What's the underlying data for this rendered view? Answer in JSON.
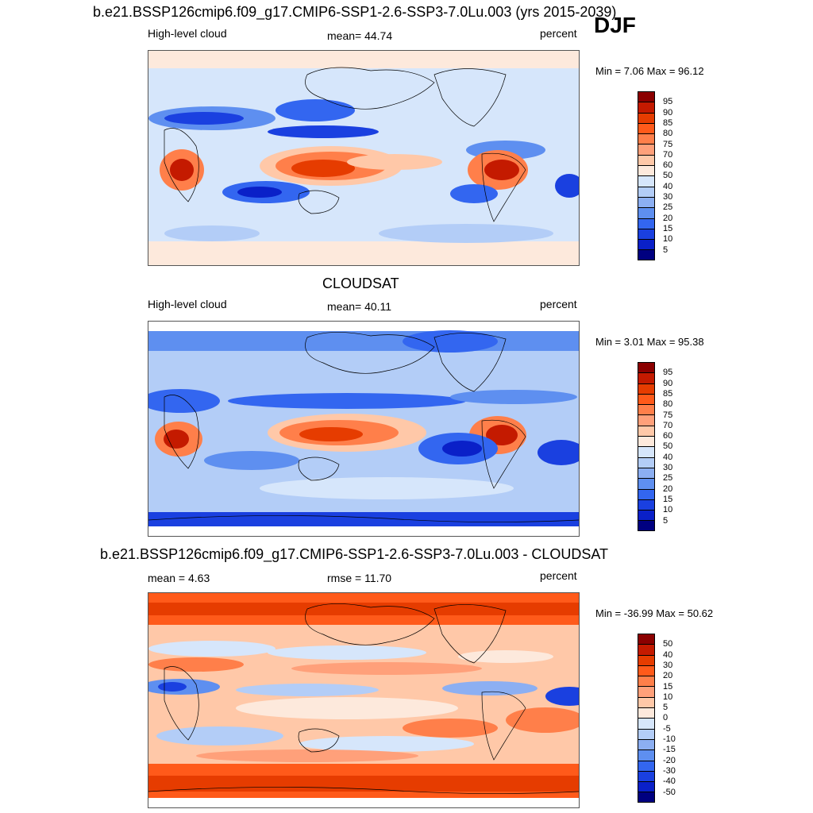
{
  "season": "DJF",
  "panels": [
    {
      "title": "b.e21.BSSP126cmip6.f09_g17.CMIP6-SSP1-2.6-SSP3-7.0Lu.003 (yrs 2015-2039)",
      "left_label": "High-level cloud",
      "center_label": "mean=  44.74",
      "right_label": "percent",
      "minmax": "Min =   7.06 Max =  96.12"
    },
    {
      "title": "CLOUDSAT",
      "left_label": "High-level cloud",
      "center_label": "mean=  40.11",
      "right_label": "percent",
      "minmax": "Min =   3.01 Max =  95.38"
    },
    {
      "title": "b.e21.BSSP126cmip6.f09_g17.CMIP6-SSP1-2.6-SSP3-7.0Lu.003 - CLOUDSAT",
      "left_label": "mean =   4.63",
      "center_label": "rmse =  11.70",
      "right_label": "percent",
      "minmax": "Min = -36.99 Max =  50.62"
    }
  ],
  "colorbar_abs": {
    "labels": [
      "95",
      "90",
      "85",
      "80",
      "75",
      "70",
      "60",
      "50",
      "40",
      "30",
      "25",
      "20",
      "15",
      "10",
      "5"
    ],
    "colors": [
      "#8b0000",
      "#c41a00",
      "#e63c00",
      "#ff5a1a",
      "#ff7f4a",
      "#ffa07a",
      "#ffc8a8",
      "#fde9dc",
      "#d6e6fb",
      "#b3cdf7",
      "#8caff2",
      "#5e8ff0",
      "#3366f0",
      "#1a40e0",
      "#0a20c8",
      "#000080"
    ]
  },
  "colorbar_diff": {
    "labels": [
      "50",
      "40",
      "30",
      "20",
      "15",
      "10",
      "5",
      "0",
      "-5",
      "-10",
      "-15",
      "-20",
      "-30",
      "-40",
      "-50"
    ],
    "colors": [
      "#8b0000",
      "#c41a00",
      "#e63c00",
      "#ff5a1a",
      "#ff7f4a",
      "#ffa07a",
      "#ffc8a8",
      "#fde9dc",
      "#d6e6fb",
      "#b3cdf7",
      "#8caff2",
      "#5e8ff0",
      "#3366f0",
      "#1a40e0",
      "#0a20c8",
      "#000080"
    ]
  }
}
